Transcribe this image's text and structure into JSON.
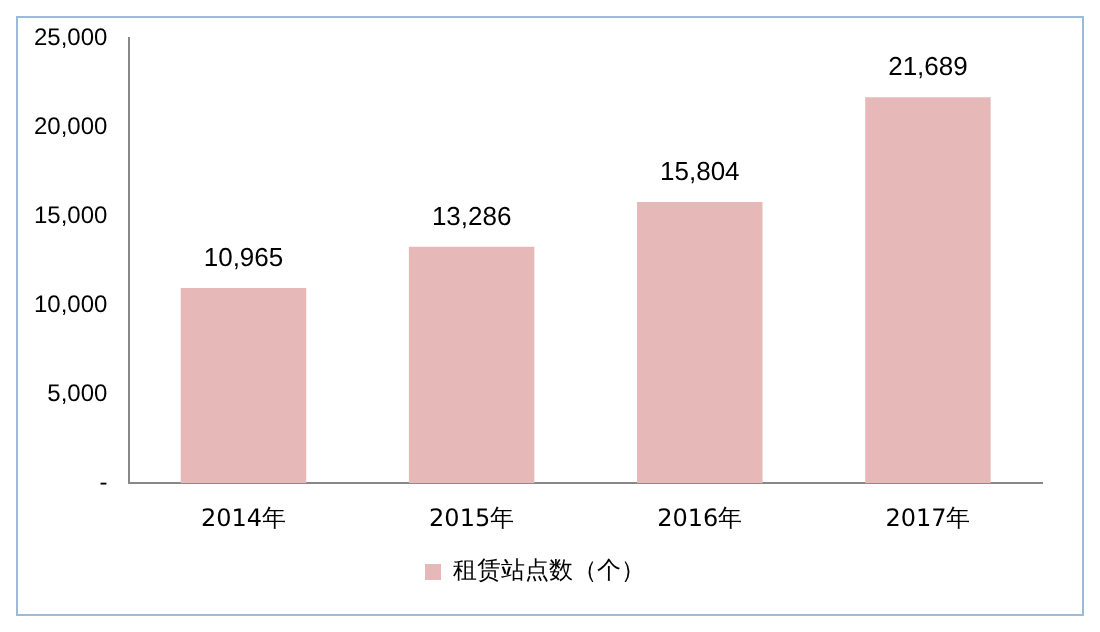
{
  "chart_data": {
    "type": "bar",
    "categories": [
      "2014年",
      "2015年",
      "2016年",
      "2017年"
    ],
    "series": [
      {
        "name": "租赁站点数（个）",
        "color": "#e6b9b8",
        "values": [
          10965,
          13286,
          15804,
          21689
        ],
        "value_labels": [
          "10,965",
          "13,286",
          "15,804",
          "21,689"
        ]
      }
    ],
    "ylim": [
      0,
      25000
    ],
    "yticks": [
      {
        "value": 0,
        "label": "-"
      },
      {
        "value": 5000,
        "label": "5,000"
      },
      {
        "value": 10000,
        "label": "10,000"
      },
      {
        "value": 15000,
        "label": "15,000"
      },
      {
        "value": 20000,
        "label": "20,000"
      },
      {
        "value": 25000,
        "label": "25,000"
      }
    ],
    "grid": false,
    "legend": "bottom"
  }
}
